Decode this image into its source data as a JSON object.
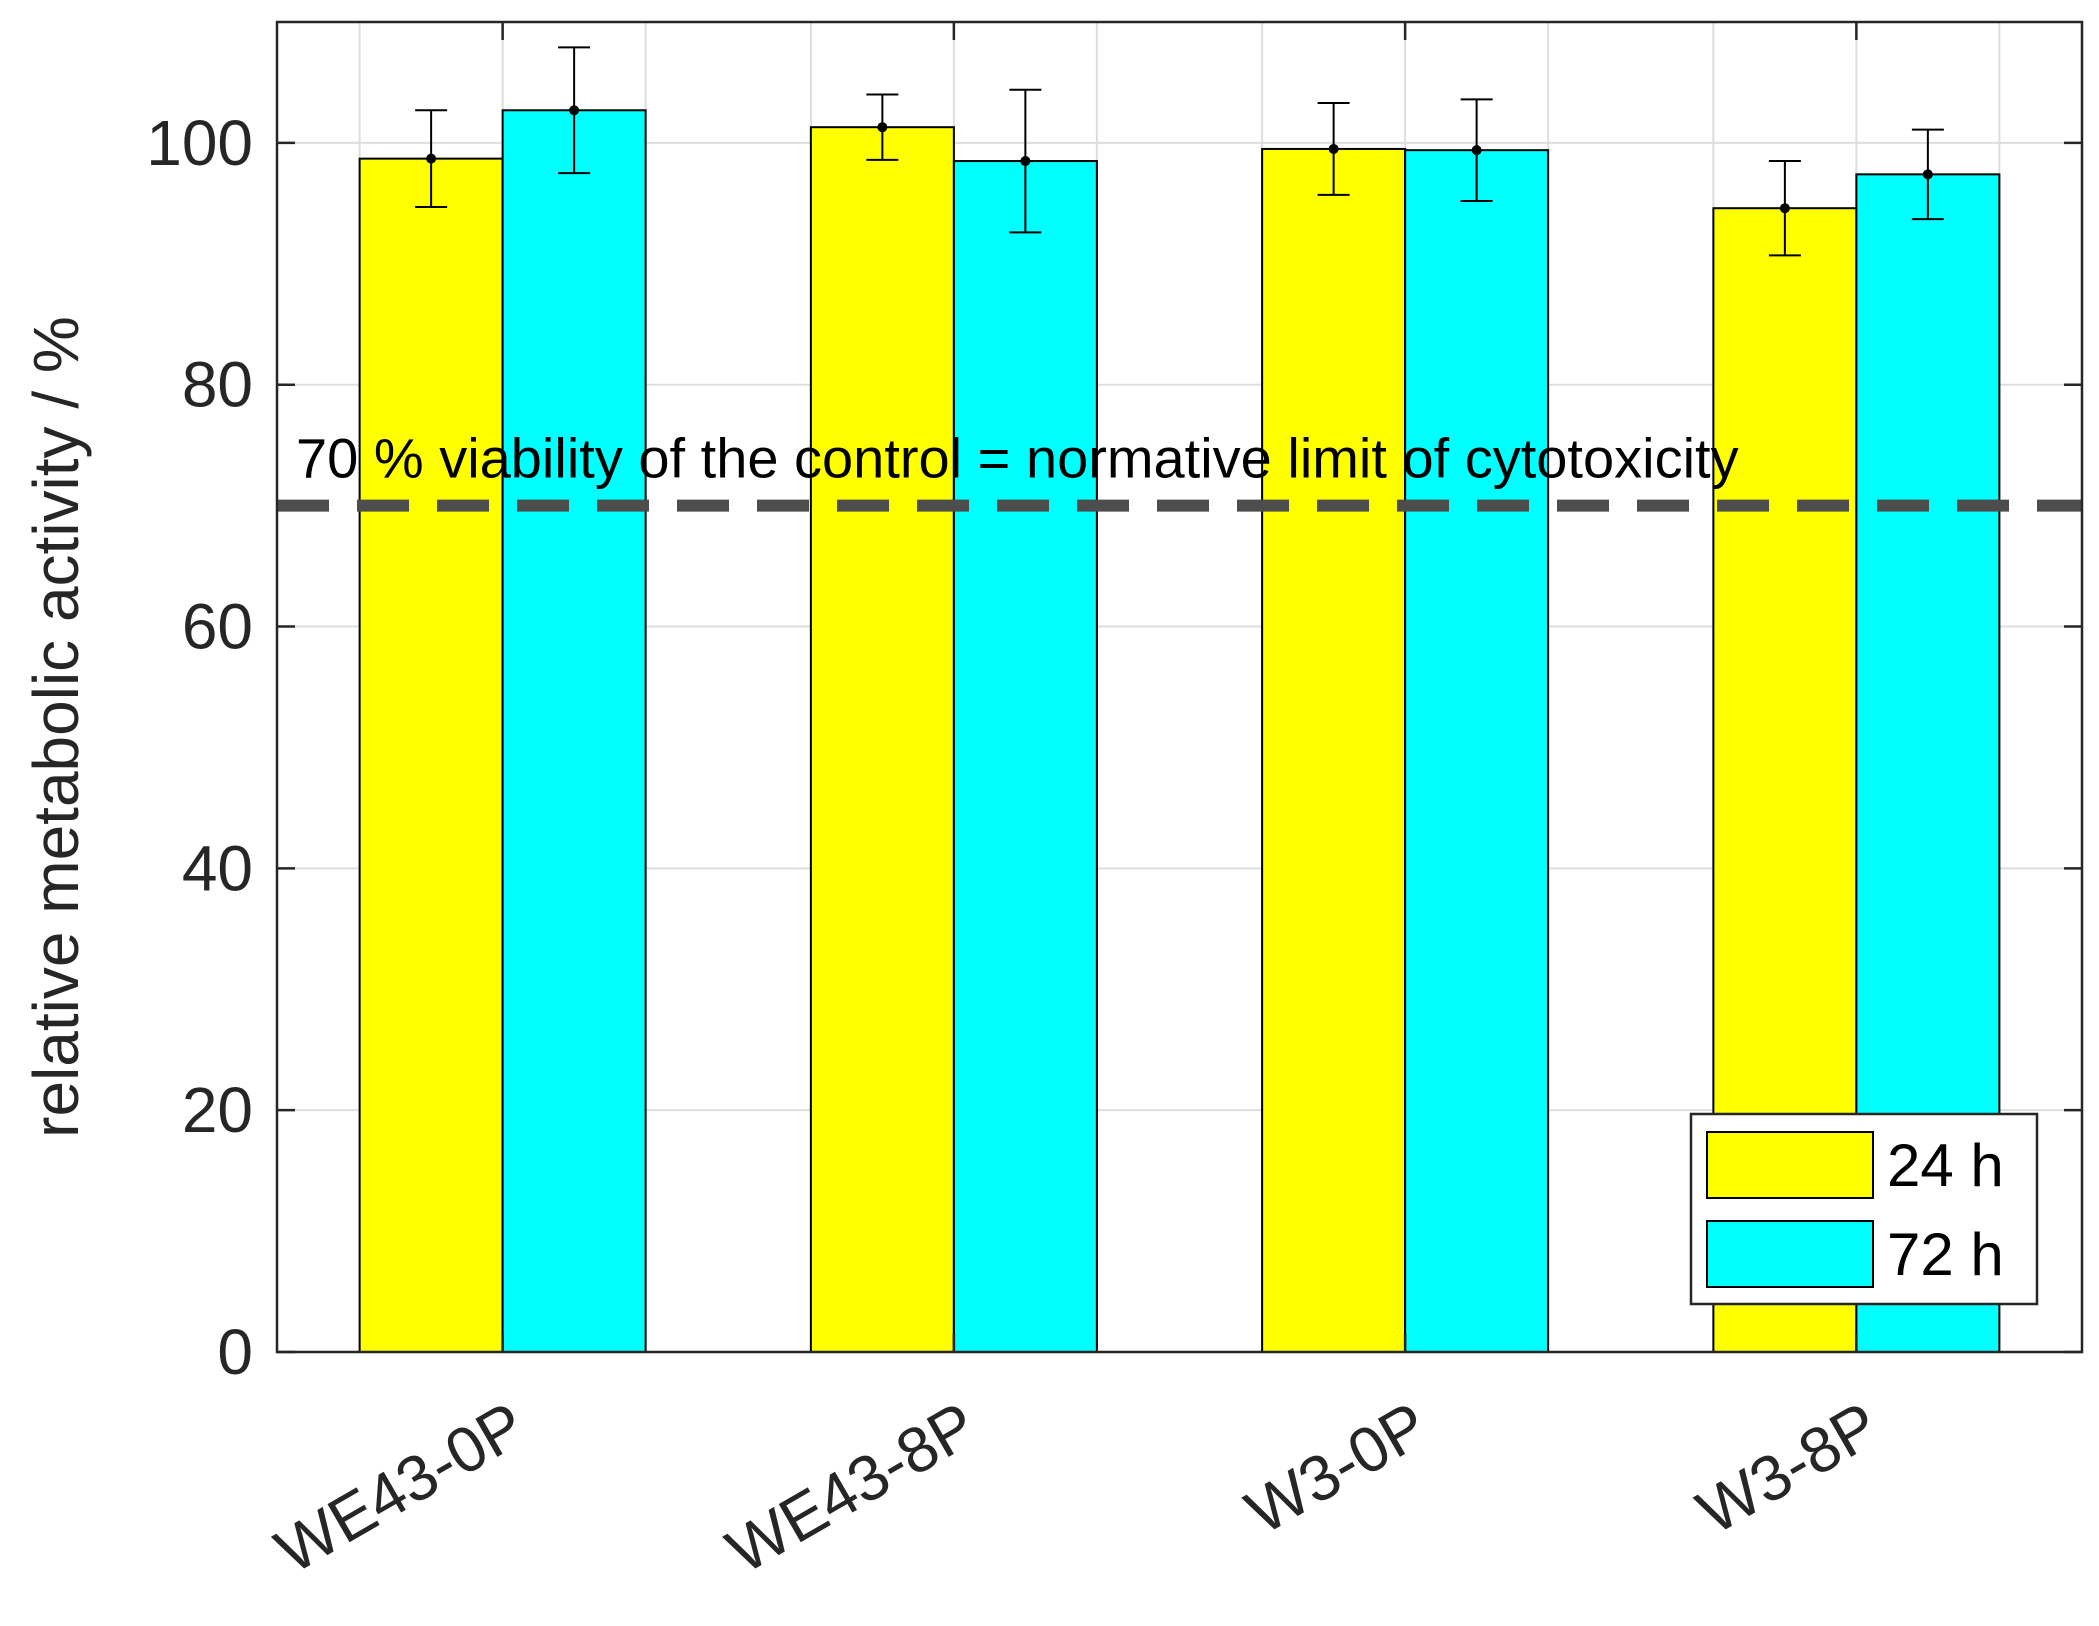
{
  "chart_data": {
    "type": "bar",
    "title": "",
    "xlabel": "",
    "ylabel": "relative metabolic activity / %",
    "ylim": [
      0,
      110
    ],
    "yticks": [
      0,
      20,
      40,
      60,
      80,
      100
    ],
    "grid": true,
    "categories": [
      "WE43-0P",
      "WE43-8P",
      "W3-0P",
      "W3-8P"
    ],
    "series": [
      {
        "name": "24 h",
        "color": "#ffff00",
        "values": [
          98.7,
          101.3,
          99.5,
          94.6
        ],
        "errors": [
          4.0,
          2.7,
          3.8,
          3.9
        ]
      },
      {
        "name": "72 h",
        "color": "#00ffff",
        "values": [
          102.7,
          98.5,
          99.4,
          97.4
        ],
        "errors": [
          5.2,
          5.9,
          4.2,
          3.7
        ]
      }
    ],
    "reference_line": {
      "value": 70,
      "style": "dashed",
      "color": "#4d4d4d",
      "label": "70 % viability of the control = normative limit of cytotoxicity"
    },
    "legend": {
      "placement": "bottom-right",
      "entries": [
        "24 h",
        "72 h"
      ]
    }
  }
}
